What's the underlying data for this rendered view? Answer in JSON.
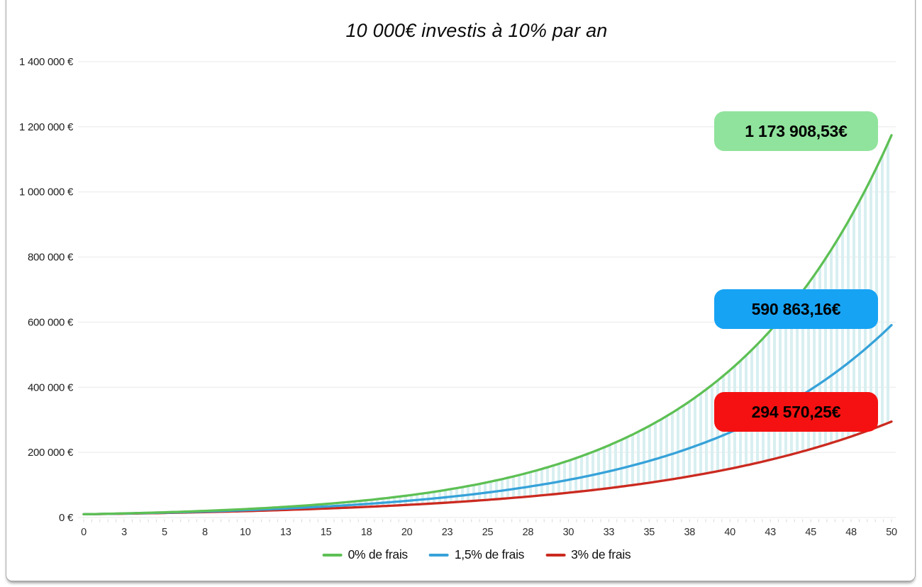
{
  "window": {
    "background": "#ffffff",
    "card_border_color": "#a9a9a9"
  },
  "chart_data": {
    "type": "line",
    "title": "10 000€ investis à 10% par an",
    "initial_investment": 10000,
    "annual_return_label": "10%",
    "xlim": [
      0,
      50
    ],
    "ylim": [
      0,
      1400000
    ],
    "grid": "horizontal",
    "gridline_color": "#e9e9e9",
    "tick_color": "#d8d8d8",
    "legend_position": "bottom",
    "x_ticks": [
      {
        "value": 0,
        "label": "0"
      },
      {
        "value": 2.5,
        "label": "3"
      },
      {
        "value": 5,
        "label": "5"
      },
      {
        "value": 7.5,
        "label": "8"
      },
      {
        "value": 10,
        "label": "10"
      },
      {
        "value": 12.5,
        "label": "13"
      },
      {
        "value": 15,
        "label": "15"
      },
      {
        "value": 17.5,
        "label": "18"
      },
      {
        "value": 20,
        "label": "20"
      },
      {
        "value": 22.5,
        "label": "23"
      },
      {
        "value": 25,
        "label": "25"
      },
      {
        "value": 27.5,
        "label": "28"
      },
      {
        "value": 30,
        "label": "30"
      },
      {
        "value": 32.5,
        "label": "33"
      },
      {
        "value": 35,
        "label": "35"
      },
      {
        "value": 37.5,
        "label": "38"
      },
      {
        "value": 40,
        "label": "40"
      },
      {
        "value": 42.5,
        "label": "43"
      },
      {
        "value": 45,
        "label": "45"
      },
      {
        "value": 47.5,
        "label": "48"
      },
      {
        "value": 50,
        "label": "50"
      }
    ],
    "y_ticks": [
      {
        "value": 0,
        "label": "0 €"
      },
      {
        "value": 200000,
        "label": "200 000 €"
      },
      {
        "value": 400000,
        "label": "400 000 €"
      },
      {
        "value": 600000,
        "label": "600 000 €"
      },
      {
        "value": 800000,
        "label": "800 000 €"
      },
      {
        "value": 1000000,
        "label": "1 000 000 €"
      },
      {
        "value": 1200000,
        "label": "1 200 000 €"
      },
      {
        "value": 1400000,
        "label": "1 400 000 €"
      }
    ],
    "series": [
      {
        "name": "0% de frais",
        "annual_multiplier": 1.1,
        "color": "#5dc054",
        "callout_bg": "#90e39c",
        "final_value_label": "1 173 908,53€",
        "final_value": 1173908.53,
        "x_every_5_years": [
          0,
          5,
          10,
          15,
          20,
          25,
          30,
          35,
          40,
          45,
          50
        ],
        "values_every_5_years": [
          10000,
          16105,
          25937,
          41772,
          67275,
          108347,
          174494,
          281024,
          452593,
          728905,
          1173909
        ]
      },
      {
        "name": "1,5% de frais",
        "annual_multiplier": 1.085,
        "color": "#36a2d9",
        "callout_bg": "#17a3f3",
        "final_value_label": "590 863,16€",
        "final_value": 590863.16,
        "x_every_5_years": [
          0,
          5,
          10,
          15,
          20,
          25,
          30,
          35,
          40,
          45,
          50
        ],
        "values_every_5_years": [
          10000,
          15037,
          22610,
          33997,
          51120,
          76868,
          115583,
          173796,
          261330,
          392951,
          590863
        ]
      },
      {
        "name": "3% de frais",
        "annual_multiplier": 1.07,
        "color": "#cb2a20",
        "callout_bg": "#f51111",
        "final_value_label": "294 570,25€",
        "final_value": 294570.25,
        "x_every_5_years": [
          0,
          5,
          10,
          15,
          20,
          25,
          30,
          35,
          40,
          45,
          50
        ],
        "values_every_5_years": [
          10000,
          14026,
          19672,
          27590,
          38697,
          54274,
          76123,
          106766,
          149745,
          210025,
          294570
        ]
      }
    ],
    "fill_between": {
      "upper": "0% de frais",
      "lower": "3% de frais",
      "stripe_color": "#d9eff1",
      "pattern": "vertical-stripes"
    }
  }
}
